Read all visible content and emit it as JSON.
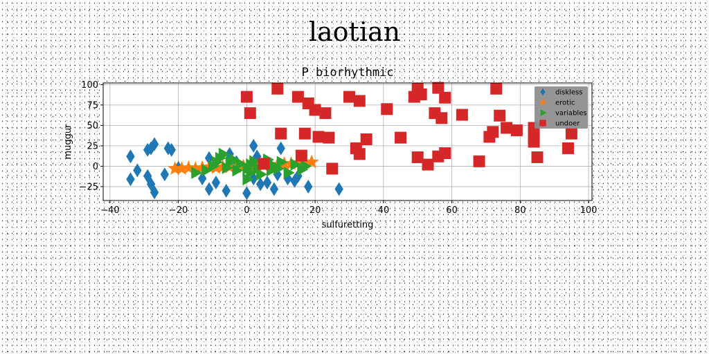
{
  "suptitle": "laotian",
  "chart_data": {
    "type": "scatter",
    "title": "P biorhythmic",
    "xlabel": "sulfuretting",
    "ylabel": "muggur",
    "xlim": [
      -42,
      101
    ],
    "ylim": [
      -42,
      102
    ],
    "xticks": [
      -40,
      -20,
      0,
      20,
      40,
      60,
      80,
      100
    ],
    "yticks": [
      -25,
      0,
      25,
      50,
      75,
      100
    ],
    "grid": true,
    "legend_position": "top-right",
    "series": [
      {
        "name": "diskless",
        "marker": "diamond",
        "color": "#1f77b4",
        "points": [
          [
            -34,
            12
          ],
          [
            -34,
            -16
          ],
          [
            -32,
            -5
          ],
          [
            -29,
            20
          ],
          [
            -29,
            -12
          ],
          [
            -28,
            22
          ],
          [
            -28,
            -22
          ],
          [
            -27,
            27
          ],
          [
            -27,
            -32
          ],
          [
            -23,
            22
          ],
          [
            -22,
            20
          ],
          [
            -24,
            -10
          ],
          [
            -20,
            -2
          ],
          [
            -15,
            -5
          ],
          [
            -13,
            -15
          ],
          [
            -11,
            -28
          ],
          [
            -11,
            10
          ],
          [
            -9,
            -20
          ],
          [
            -6,
            -30
          ],
          [
            -5,
            15
          ],
          [
            -3,
            5
          ],
          [
            0,
            -33
          ],
          [
            2,
            25
          ],
          [
            2,
            -15
          ],
          [
            3,
            12
          ],
          [
            4,
            -22
          ],
          [
            6,
            -20
          ],
          [
            8,
            -28
          ],
          [
            9,
            -10
          ],
          [
            10,
            22
          ],
          [
            12,
            -15
          ],
          [
            14,
            -18
          ],
          [
            15,
            -12
          ],
          [
            18,
            -25
          ],
          [
            27,
            -28
          ]
        ]
      },
      {
        "name": "erotic",
        "marker": "star",
        "color": "#ff7f0e",
        "points": [
          [
            -21,
            -3
          ],
          [
            -19,
            -3
          ],
          [
            -17,
            -2
          ],
          [
            -15,
            -3
          ],
          [
            -13,
            -2
          ],
          [
            -11,
            -1
          ],
          [
            -9,
            -2
          ],
          [
            -7,
            -1
          ],
          [
            -5,
            -1
          ],
          [
            -3,
            -1
          ],
          [
            -1,
            0
          ],
          [
            1,
            0
          ],
          [
            3,
            0
          ],
          [
            5,
            1
          ],
          [
            7,
            2
          ],
          [
            9,
            2
          ],
          [
            11,
            3
          ],
          [
            13,
            3
          ],
          [
            15,
            4
          ],
          [
            17,
            4
          ],
          [
            19,
            5
          ]
        ]
      },
      {
        "name": "variables",
        "marker": "triangle-right",
        "color": "#2ca02c",
        "points": [
          [
            -15,
            -8
          ],
          [
            -12,
            -5
          ],
          [
            -10,
            0
          ],
          [
            -9,
            5
          ],
          [
            -8,
            10
          ],
          [
            -7,
            15
          ],
          [
            -6,
            -2
          ],
          [
            -5,
            5
          ],
          [
            -4,
            8
          ],
          [
            -3,
            -5
          ],
          [
            -2,
            3
          ],
          [
            0,
            -3
          ],
          [
            0,
            -16
          ],
          [
            1,
            2
          ],
          [
            1,
            -8
          ],
          [
            2,
            6
          ],
          [
            3,
            -2
          ],
          [
            4,
            -10
          ],
          [
            5,
            3
          ],
          [
            6,
            8
          ],
          [
            7,
            -5
          ],
          [
            8,
            0
          ],
          [
            9,
            -3
          ],
          [
            10,
            5
          ],
          [
            12,
            -8
          ],
          [
            14,
            2
          ],
          [
            16,
            -4
          ],
          [
            17,
            0
          ]
        ]
      },
      {
        "name": "undoer",
        "marker": "square",
        "color": "#d62728",
        "points": [
          [
            0,
            85
          ],
          [
            1,
            65
          ],
          [
            5,
            3
          ],
          [
            9,
            95
          ],
          [
            10,
            40
          ],
          [
            15,
            85
          ],
          [
            16,
            13
          ],
          [
            17,
            40
          ],
          [
            18,
            77
          ],
          [
            20,
            69
          ],
          [
            21,
            36
          ],
          [
            23,
            65
          ],
          [
            24,
            35
          ],
          [
            25,
            -3
          ],
          [
            30,
            85
          ],
          [
            32,
            22
          ],
          [
            33,
            15
          ],
          [
            33,
            80
          ],
          [
            35,
            33
          ],
          [
            41,
            70
          ],
          [
            45,
            35
          ],
          [
            49,
            85
          ],
          [
            50,
            11
          ],
          [
            50,
            95
          ],
          [
            51,
            88
          ],
          [
            53,
            2
          ],
          [
            55,
            65
          ],
          [
            56,
            96
          ],
          [
            56,
            12
          ],
          [
            57,
            59
          ],
          [
            58,
            84
          ],
          [
            58,
            16
          ],
          [
            63,
            63
          ],
          [
            68,
            6
          ],
          [
            71,
            36
          ],
          [
            72,
            42
          ],
          [
            73,
            95
          ],
          [
            74,
            62
          ],
          [
            76,
            47
          ],
          [
            79,
            44
          ],
          [
            84,
            47
          ],
          [
            84,
            36
          ],
          [
            84,
            30
          ],
          [
            85,
            11
          ],
          [
            94,
            22
          ],
          [
            95,
            40
          ]
        ]
      }
    ]
  }
}
